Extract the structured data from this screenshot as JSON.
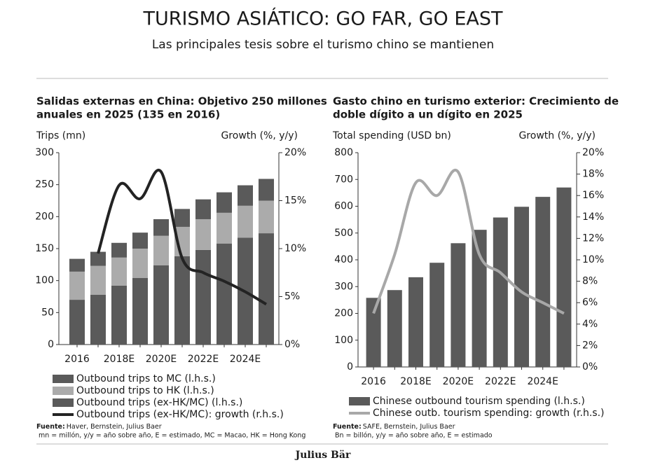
{
  "title": "TURISMO ASIÁTICO: GO FAR, GO EAST",
  "subtitle": "Las principales tesis sobre el turismo chino se mantienen",
  "footer": "Julius Bär",
  "chart_data": [
    {
      "type": "bar",
      "stacked": true,
      "title": [
        "Salidas externas en China: Objetivo 250 millones",
        "anuales en 2025 (135 en 2016)"
      ],
      "ylabel": "Trips (mn)",
      "y2label": "Growth (%, y/y)",
      "categories": [
        "2016",
        null,
        "2018E",
        null,
        "2020E",
        null,
        "2022E",
        null,
        "2024E",
        null
      ],
      "series": [
        {
          "name": "Outbound trips to MC (l.h.s.)",
          "color": "#5a5a5a",
          "values": [
            20,
            22,
            23,
            25,
            26,
            28,
            31,
            32,
            32,
            34
          ]
        },
        {
          "name": "Outbound trips to HK (l.h.s.)",
          "color": "#ababab",
          "values": [
            44,
            45,
            44,
            46,
            46,
            46,
            48,
            48,
            50,
            51
          ]
        },
        {
          "name": "Outbound trips (ex-HK/MC) (l.h.s.)",
          "color": "#5a5a5a",
          "values": [
            70,
            78,
            92,
            104,
            124,
            138,
            148,
            158,
            167,
            174
          ]
        },
        {
          "name": "Outbound trips (ex-HK/MC): growth (r.h.s.)",
          "color": "#232323",
          "axis": "y2",
          "values": [
            null,
            9.5,
            16.6,
            15.2,
            18,
            9,
            7.5,
            6.6,
            5.5,
            4.2
          ]
        }
      ],
      "ylim": [
        0,
        300
      ],
      "yticks": [
        0,
        50,
        100,
        150,
        200,
        250,
        300
      ],
      "y2lim": [
        0,
        20
      ],
      "y2ticks": [
        {
          "value": 0,
          "label": "0%"
        },
        {
          "value": 5,
          "label": "5%"
        },
        {
          "value": 10,
          "label": "10%"
        },
        {
          "value": 15,
          "label": "15%"
        },
        {
          "value": 20,
          "label": "20%"
        }
      ],
      "source_label": "Fuente:",
      "source": "Haver, Bernstein, Julius Baer",
      "note": "mn = millón, y/y = año sobre año, E = estimado, MC = Macao, HK = Hong Kong"
    },
    {
      "type": "bar",
      "stacked": false,
      "title": [
        "Gasto chino en turismo exterior: Crecimiento de",
        "doble dígito a un dígito en 2025"
      ],
      "ylabel": "Total spending (USD bn)",
      "y2label": "Growth (%, y/y)",
      "categories": [
        "2016",
        null,
        "2018E",
        null,
        "2020E",
        null,
        "2022E",
        null,
        "2024E",
        null
      ],
      "series": [
        {
          "name": "Chinese outbound tourism spending (l.h.s.)",
          "color": "#5a5a5a",
          "values": [
            258,
            287,
            335,
            389,
            462,
            512,
            558,
            598,
            635,
            670
          ]
        },
        {
          "name": "Chinese outb. tourism spending: growth (r.h.s.)",
          "color": "#a8a8a8",
          "axis": "y2",
          "values": [
            5,
            10.5,
            17.2,
            16,
            18.2,
            10.5,
            8.8,
            7,
            6,
            5
          ]
        }
      ],
      "ylim": [
        0,
        800
      ],
      "yticks": [
        0,
        100,
        200,
        300,
        400,
        500,
        600,
        700,
        800
      ],
      "y2lim": [
        0,
        20
      ],
      "y2ticks": [
        {
          "value": 0,
          "label": "0%"
        },
        {
          "value": 2,
          "label": "2%"
        },
        {
          "value": 4,
          "label": "4%"
        },
        {
          "value": 6,
          "label": "6%"
        },
        {
          "value": 8,
          "label": "8%"
        },
        {
          "value": 10,
          "label": "10%"
        },
        {
          "value": 12,
          "label": "12%"
        },
        {
          "value": 14,
          "label": "14%"
        },
        {
          "value": 16,
          "label": "16%"
        },
        {
          "value": 18,
          "label": "18%"
        },
        {
          "value": 20,
          "label": "20%"
        }
      ],
      "source_label": "Fuente:",
      "source": "SAFE, Bernstein, Julius Baer",
      "note": "Bn = billón, y/y = año sobre año, E = estimado"
    }
  ]
}
